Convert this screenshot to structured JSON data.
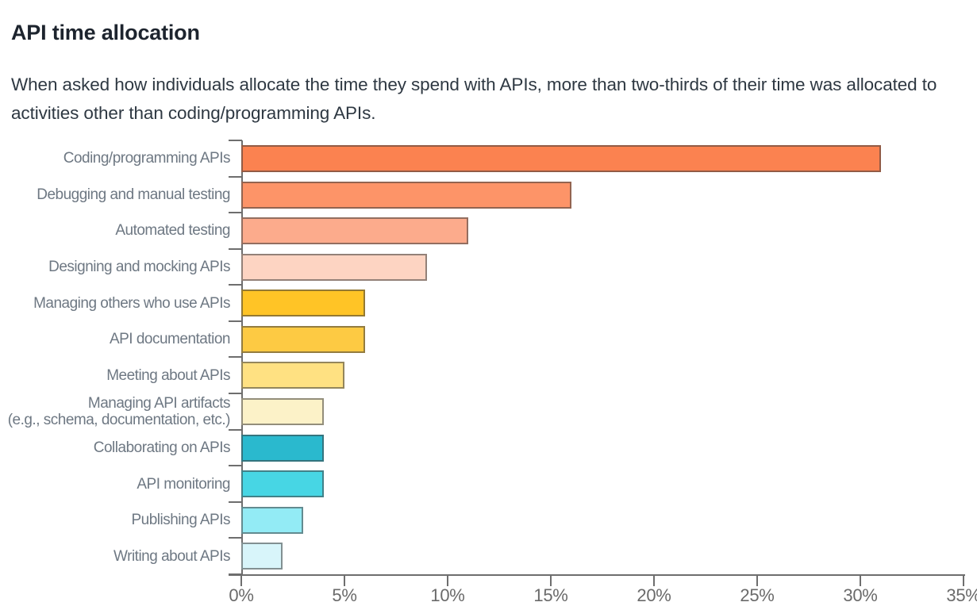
{
  "header": {
    "title": "API time allocation",
    "subtitle": "When asked how individuals allocate the time they spend with APIs, more than two-thirds of their time was allocated to activities other than coding/programming APIs."
  },
  "chart_data": {
    "type": "bar",
    "orientation": "horizontal",
    "title": "API time allocation",
    "categories": [
      "Coding/programming APIs",
      "Debugging and manual testing",
      "Automated testing",
      "Designing and mocking APIs",
      "Managing others who use APIs",
      "API documentation",
      "Meeting about APIs",
      "Managing API artifacts\n(e.g., schema, documentation, etc.)",
      "Collaborating on APIs",
      "API monitoring",
      "Publishing APIs",
      "Writing about APIs"
    ],
    "values": [
      31,
      16,
      11,
      9,
      6,
      6,
      5,
      4,
      4,
      4,
      3,
      2
    ],
    "unit": "%",
    "xlabel": "",
    "ylabel": "",
    "xlim": [
      0,
      35
    ],
    "x_tick_values": [
      0,
      5,
      10,
      15,
      20,
      25,
      30,
      35
    ],
    "x_tick_labels": [
      "0%",
      "5%",
      "10%",
      "15%",
      "20%",
      "25%",
      "30%",
      "35%"
    ],
    "grid": false,
    "legend": false,
    "bar_colors": [
      "#fb8250",
      "#fd9468",
      "#fcab8c",
      "#fdd4c2",
      "#ffc426",
      "#fdca43",
      "#ffe182",
      "#fcf2c8",
      "#2ab9ce",
      "#47d6e4",
      "#93ebf5",
      "#d8f5fa"
    ],
    "bar_border_color": "rgba(60,60,60,0.55)",
    "axis_color": "#6e6e6e",
    "category_label_color": "#6e7883",
    "tick_label_color": "#6a6a6a"
  }
}
